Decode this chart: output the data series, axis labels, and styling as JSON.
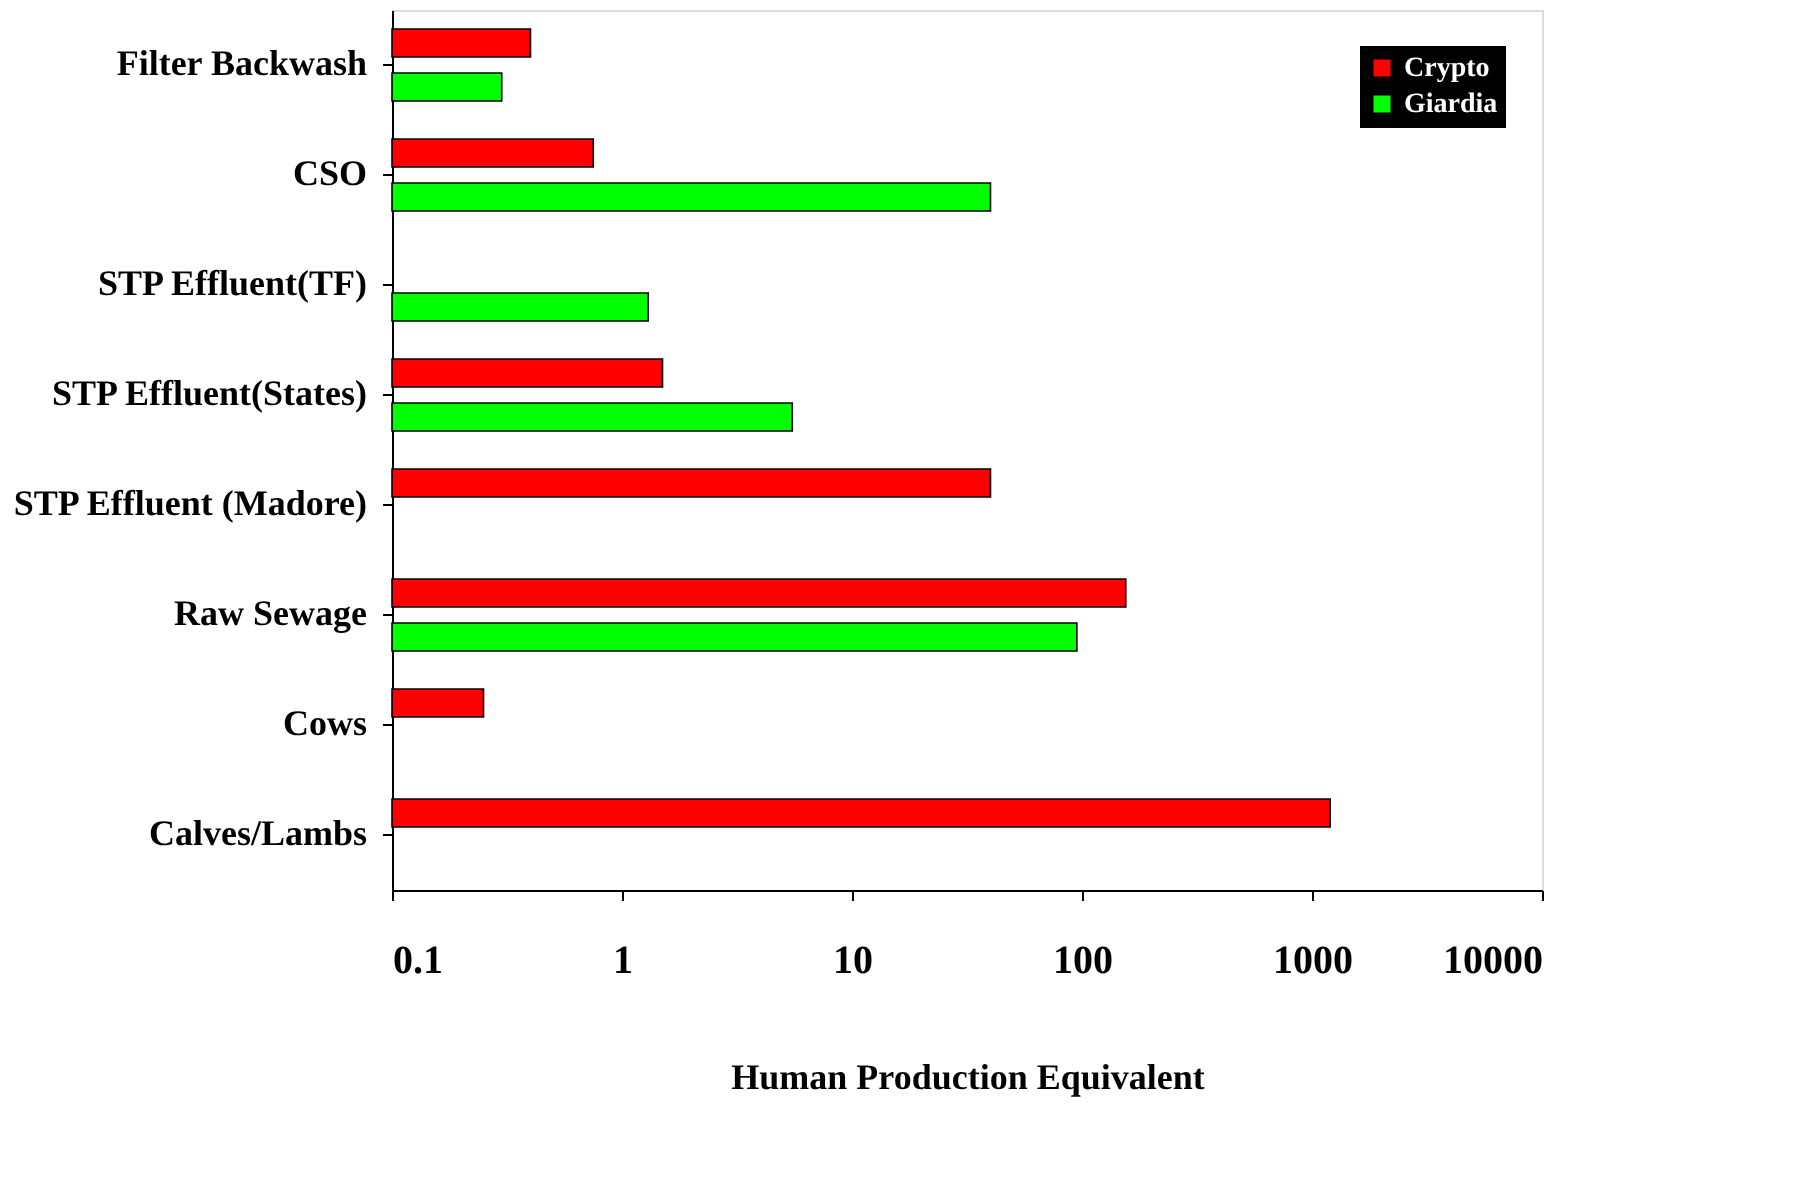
{
  "chart_data": {
    "type": "bar",
    "orientation": "horizontal",
    "xlabel": "Human Production Equivalent",
    "categories": [
      "Filter Backwash",
      "CSO",
      "STP Effluent(TF)",
      "STP Effluent(States)",
      "STP Effluent (Madore)",
      "Raw Sewage",
      "Cows",
      "Calves/Lambs"
    ],
    "series": [
      {
        "name": "Crypto",
        "color": "#ff0000",
        "values": [
          0.4,
          0.75,
          null,
          1.5,
          40,
          155,
          0.25,
          1200
        ]
      },
      {
        "name": "Giardia",
        "color": "#00ff00",
        "values": [
          0.3,
          40,
          1.3,
          5.5,
          null,
          95,
          null,
          null
        ]
      }
    ],
    "log": "x",
    "xlim": [
      0.1,
      10000
    ],
    "xticks": [
      0.1,
      1,
      10,
      100,
      1000,
      10000
    ],
    "legend": "top right",
    "grid": false
  }
}
